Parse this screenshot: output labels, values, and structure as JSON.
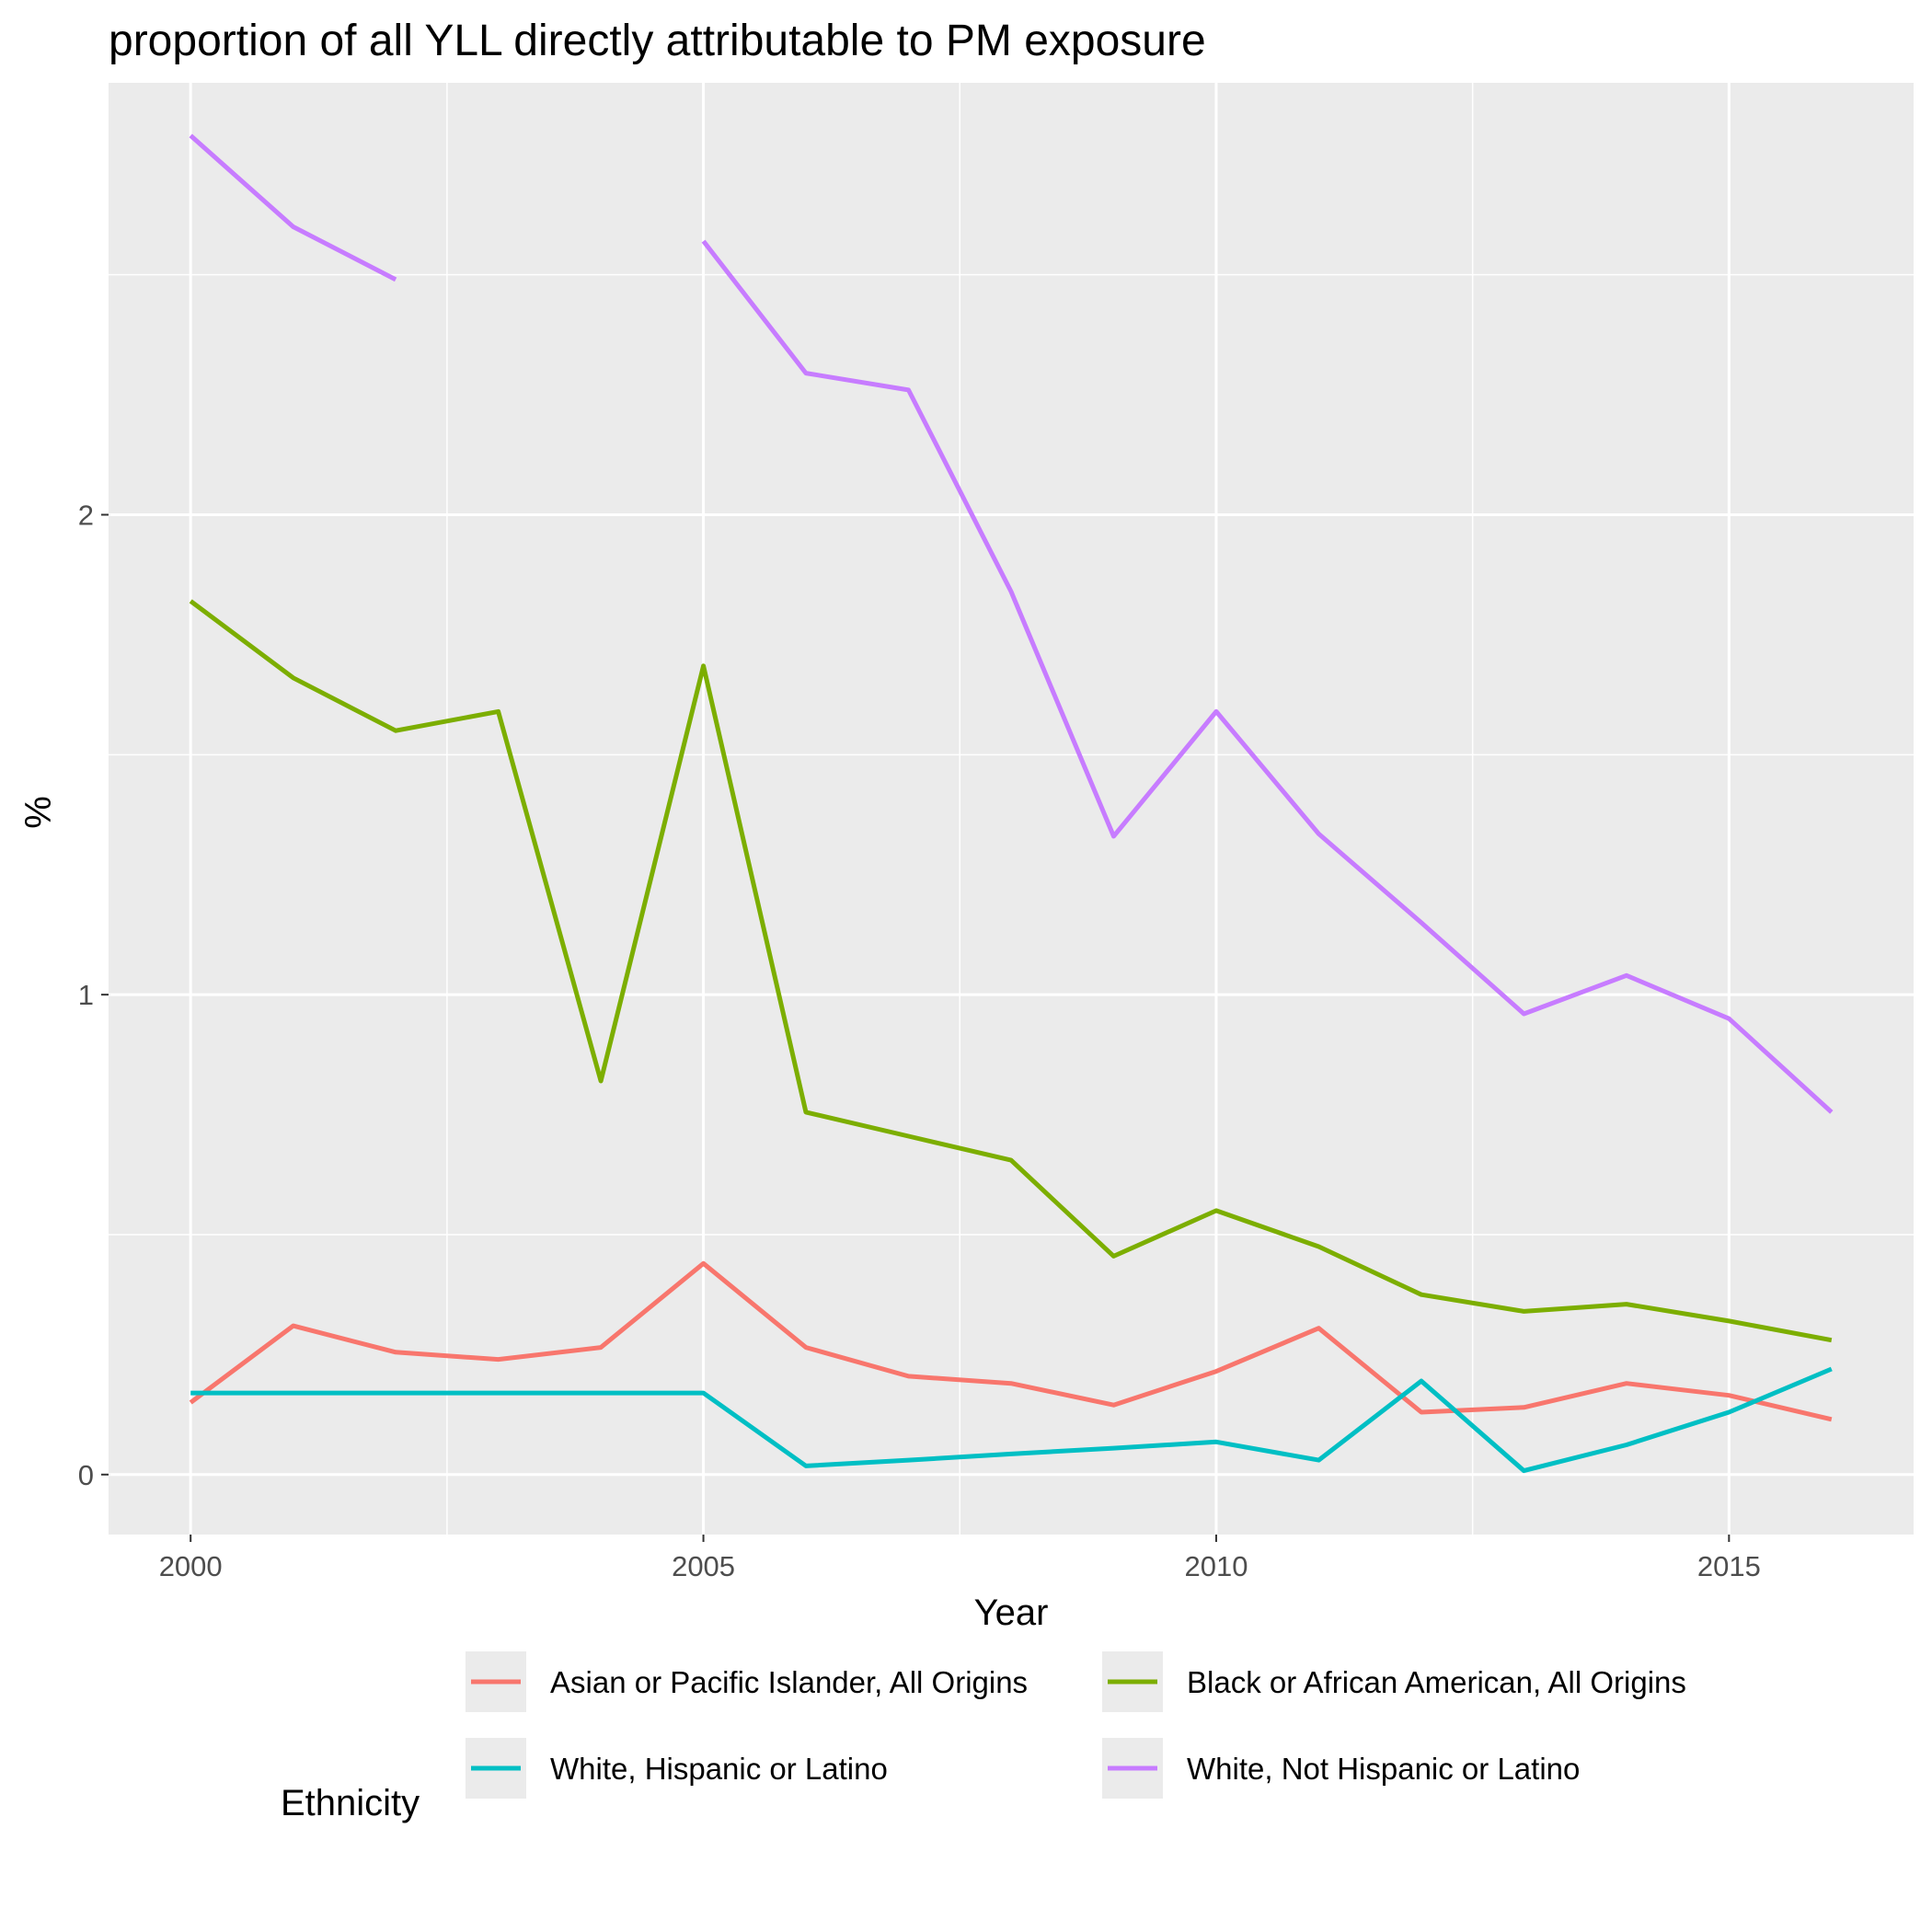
{
  "chart_data": {
    "type": "line",
    "title": "proportion of all YLL directly attributable to PM exposure",
    "xlabel": "Year",
    "ylabel": "%",
    "xlim": [
      1999.2,
      2016.8
    ],
    "ylim": [
      -0.125,
      2.9
    ],
    "x_ticks": [
      2000,
      2005,
      2010,
      2015
    ],
    "x_tick_labels": [
      "2000",
      "2005",
      "2010",
      "2015"
    ],
    "y_ticks": [
      0,
      1,
      2
    ],
    "y_tick_labels": [
      "0",
      "1",
      "2"
    ],
    "grid": true,
    "legend": {
      "title": "Ethnicity",
      "position": "bottom"
    },
    "series": [
      {
        "name": "Asian or Pacific Islander, All Origins",
        "color": "#F8766D",
        "points": [
          [
            2000,
            0.15
          ],
          [
            2001,
            0.31
          ],
          [
            2002,
            0.255
          ],
          [
            2003,
            0.24
          ],
          [
            2004,
            0.265
          ],
          [
            2005,
            0.44
          ],
          [
            2006,
            0.265
          ],
          [
            2007,
            0.205
          ],
          [
            2008,
            0.19
          ],
          [
            2009,
            0.145
          ],
          [
            2010,
            0.215
          ],
          [
            2011,
            0.305
          ],
          [
            2012,
            0.13
          ],
          [
            2013,
            0.14
          ],
          [
            2014,
            0.19
          ],
          [
            2015,
            0.165
          ],
          [
            2016,
            0.115
          ]
        ]
      },
      {
        "name": "Black or African American, All Origins",
        "color": "#7CAE00",
        "points": [
          [
            2000,
            1.82
          ],
          [
            2001,
            1.66
          ],
          [
            2002,
            1.55
          ],
          [
            2003,
            1.59
          ],
          [
            2004,
            0.82
          ],
          [
            2005,
            1.685
          ],
          [
            2006,
            0.755
          ],
          [
            2007,
            0.705
          ],
          [
            2008,
            0.655
          ],
          [
            2009,
            0.455
          ],
          [
            2010,
            0.55
          ],
          [
            2011,
            0.475
          ],
          [
            2012,
            0.375
          ],
          [
            2013,
            0.34
          ],
          [
            2014,
            0.355
          ],
          [
            2015,
            0.32
          ],
          [
            2016,
            0.28
          ]
        ]
      },
      {
        "name": "White, Hispanic or Latino",
        "color": "#00BFC4",
        "points": [
          [
            2000,
            0.17
          ],
          [
            2001,
            0.17
          ],
          [
            2002,
            0.17
          ],
          [
            2003,
            0.17
          ],
          [
            2004,
            0.17
          ],
          [
            2005,
            0.17
          ],
          [
            2006,
            0.018
          ],
          [
            2007,
            0.03
          ],
          [
            2008,
            0.043
          ],
          [
            2009,
            0.055
          ],
          [
            2010,
            0.068
          ],
          [
            2011,
            0.03
          ],
          [
            2012,
            0.195
          ],
          [
            2013,
            0.008
          ],
          [
            2014,
            0.062
          ],
          [
            2015,
            0.13
          ],
          [
            2016,
            0.22
          ]
        ]
      },
      {
        "name": "White, Not Hispanic or Latino",
        "color": "#C77CFF",
        "points": [
          [
            2000,
            2.79
          ],
          [
            2001,
            2.6
          ],
          [
            2002,
            2.49
          ],
          [
            2003,
            null
          ],
          [
            2004,
            null
          ],
          [
            2005,
            2.57
          ],
          [
            2006,
            2.295
          ],
          [
            2007,
            2.26
          ],
          [
            2008,
            1.84
          ],
          [
            2009,
            1.33
          ],
          [
            2010,
            1.59
          ],
          [
            2011,
            1.335
          ],
          [
            2012,
            1.15
          ],
          [
            2013,
            0.96
          ],
          [
            2014,
            1.04
          ],
          [
            2015,
            0.95
          ],
          [
            2016,
            0.755
          ]
        ]
      }
    ]
  }
}
